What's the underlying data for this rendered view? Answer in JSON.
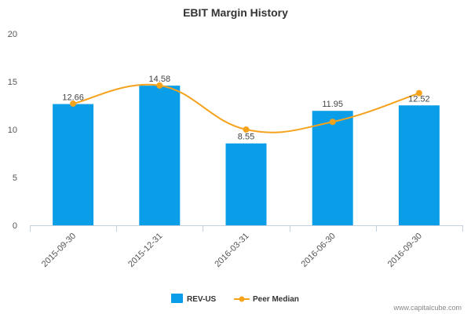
{
  "chart_data": {
    "type": "bar",
    "title": "EBIT Margin History",
    "categories": [
      "2015-09-30",
      "2015-12-31",
      "2016-03-31",
      "2016-06-30",
      "2016-09-30"
    ],
    "series": [
      {
        "name": "REV-US",
        "type": "bar",
        "color": "#0a9ee8",
        "values": [
          12.66,
          14.58,
          8.55,
          11.95,
          12.52
        ]
      },
      {
        "name": "Peer Median",
        "type": "line",
        "color": "#f5a21c",
        "values": [
          12.7,
          14.6,
          10.0,
          10.8,
          13.8
        ]
      }
    ],
    "data_labels": [
      "12.66",
      "14.58",
      "8.55",
      "11.95",
      "12.52"
    ],
    "y_ticks": [
      "0",
      "5",
      "10",
      "15",
      "20"
    ],
    "ylim": [
      0,
      20
    ],
    "legend_position": "bottom",
    "grid": false
  },
  "watermark": "www.capitalcube.com"
}
